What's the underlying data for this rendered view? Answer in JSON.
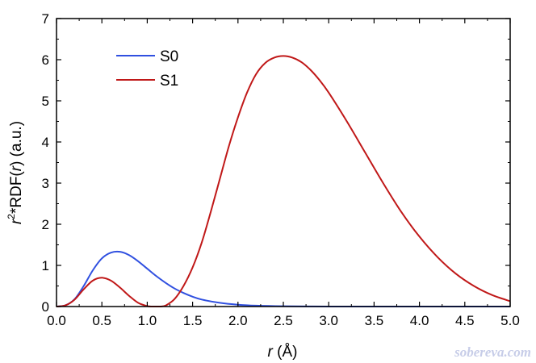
{
  "chart_data": {
    "type": "line",
    "xlabel_var": "r",
    "xlabel_unit": "(Å)",
    "ylabel_var_pre": "r",
    "ylabel_sup": "2",
    "ylabel_mid": "*RDF(",
    "ylabel_var": "r",
    "ylabel_post": ") (a.u.)",
    "xlim": [
      0,
      5
    ],
    "ylim": [
      0,
      7
    ],
    "xticks": [
      "0.0",
      "0.5",
      "1.0",
      "1.5",
      "2.0",
      "2.5",
      "3.0",
      "3.5",
      "4.0",
      "4.5",
      "5.0"
    ],
    "yticks": [
      "0",
      "1",
      "2",
      "3",
      "4",
      "5",
      "6",
      "7"
    ],
    "grid": false,
    "legend": "top-left",
    "series": [
      {
        "name": "S0",
        "color": "#3050e0",
        "x": [
          0.0,
          0.1,
          0.2,
          0.3,
          0.4,
          0.5,
          0.6,
          0.7,
          0.8,
          0.9,
          1.0,
          1.1,
          1.2,
          1.3,
          1.4,
          1.5,
          1.6,
          1.8,
          2.0,
          2.2,
          2.5,
          3.0,
          3.5,
          4.0,
          4.5,
          5.0
        ],
        "y": [
          0.0,
          0.03,
          0.18,
          0.5,
          0.88,
          1.17,
          1.31,
          1.33,
          1.25,
          1.1,
          0.92,
          0.74,
          0.58,
          0.44,
          0.33,
          0.24,
          0.17,
          0.09,
          0.045,
          0.022,
          0.008,
          0.0,
          0.0,
          0.0,
          0.0,
          0.0
        ]
      },
      {
        "name": "S1",
        "color": "#c01818",
        "x": [
          0.0,
          0.1,
          0.2,
          0.3,
          0.4,
          0.5,
          0.6,
          0.7,
          0.8,
          0.9,
          1.0,
          1.05,
          1.1,
          1.15,
          1.2,
          1.3,
          1.4,
          1.5,
          1.6,
          1.7,
          1.8,
          1.9,
          2.0,
          2.1,
          2.2,
          2.3,
          2.4,
          2.5,
          2.6,
          2.7,
          2.8,
          2.9,
          3.0,
          3.2,
          3.4,
          3.6,
          3.8,
          4.0,
          4.2,
          4.4,
          4.6,
          4.8,
          5.0
        ],
        "y": [
          0.0,
          0.03,
          0.17,
          0.42,
          0.63,
          0.7,
          0.63,
          0.46,
          0.26,
          0.09,
          0.01,
          0.0,
          0.0,
          0.0,
          0.02,
          0.18,
          0.5,
          0.95,
          1.55,
          2.3,
          3.1,
          3.9,
          4.6,
          5.2,
          5.65,
          5.92,
          6.05,
          6.09,
          6.05,
          5.94,
          5.75,
          5.5,
          5.2,
          4.5,
          3.75,
          3.0,
          2.3,
          1.7,
          1.2,
          0.8,
          0.5,
          0.28,
          0.13
        ]
      }
    ]
  },
  "watermark": "sobereva.com"
}
